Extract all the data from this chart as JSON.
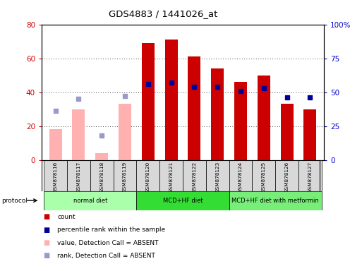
{
  "title": "GDS4883 / 1441026_at",
  "samples": [
    "GSM878116",
    "GSM878117",
    "GSM878118",
    "GSM878119",
    "GSM878120",
    "GSM878121",
    "GSM878122",
    "GSM878123",
    "GSM878124",
    "GSM878125",
    "GSM878126",
    "GSM878127"
  ],
  "count_values": [
    null,
    null,
    null,
    null,
    69,
    71,
    61,
    54,
    46,
    50,
    33,
    30
  ],
  "percentile_values": [
    null,
    null,
    null,
    null,
    56,
    57,
    54,
    54,
    51,
    53,
    46,
    46
  ],
  "absent_count_values": [
    18,
    30,
    4,
    33,
    null,
    null,
    null,
    null,
    null,
    null,
    null,
    null
  ],
  "absent_percentile_values": [
    36,
    45,
    18,
    47,
    null,
    null,
    null,
    null,
    null,
    null,
    null,
    null
  ],
  "groups": [
    {
      "label": "normal diet",
      "start": 0,
      "end": 3,
      "color": "#aaffaa"
    },
    {
      "label": "MCD+HF diet",
      "start": 4,
      "end": 7,
      "color": "#33dd33"
    },
    {
      "label": "MCD+HF diet with metformin",
      "start": 8,
      "end": 11,
      "color": "#77ee77"
    }
  ],
  "ylim_left": [
    0,
    80
  ],
  "ylim_right": [
    0,
    100
  ],
  "left_ticks": [
    0,
    20,
    40,
    60,
    80
  ],
  "right_ticks": [
    0,
    25,
    50,
    75,
    100
  ],
  "right_tick_labels": [
    "0",
    "25",
    "50",
    "75",
    "100%"
  ],
  "left_color": "#CC0000",
  "right_color": "#0000CC",
  "bar_color_present": "#CC0000",
  "bar_color_absent": "#FFB0B0",
  "dot_color_present": "#000099",
  "dot_color_absent": "#9999CC",
  "protocol_label": "protocol",
  "bar_width": 0.55,
  "legend_items": [
    {
      "color": "#CC0000",
      "label": "count"
    },
    {
      "color": "#000099",
      "label": "percentile rank within the sample"
    },
    {
      "color": "#FFB0B0",
      "label": "value, Detection Call = ABSENT"
    },
    {
      "color": "#9999CC",
      "label": "rank, Detection Call = ABSENT"
    }
  ]
}
